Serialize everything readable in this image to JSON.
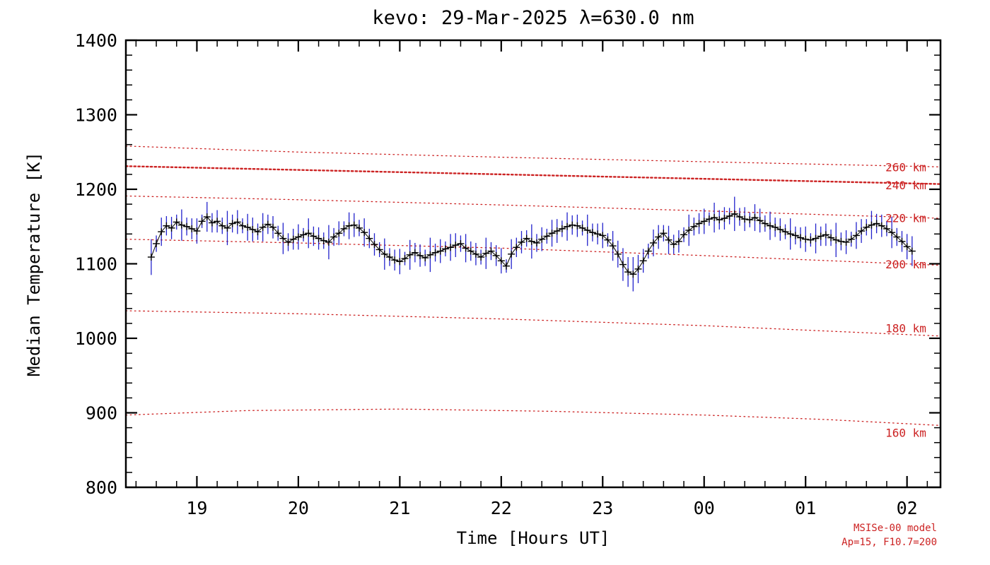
{
  "page": {
    "background": "#ffffff"
  },
  "chart_data": {
    "type": "scatter",
    "title": "kevo: 29-Mar-2025 λ=630.0 nm",
    "xlabel": "Time [Hours UT]",
    "ylabel": "Median Temperature [K]",
    "xlim": [
      18.3,
      26.33
    ],
    "ylim": [
      800,
      1400
    ],
    "grid": false,
    "x_ticks": [
      {
        "value": 19,
        "label": "19"
      },
      {
        "value": 20,
        "label": "20"
      },
      {
        "value": 21,
        "label": "21"
      },
      {
        "value": 22,
        "label": "22"
      },
      {
        "value": 23,
        "label": "23"
      },
      {
        "value": 24,
        "label": "00"
      },
      {
        "value": 25,
        "label": "01"
      },
      {
        "value": 26,
        "label": "02"
      }
    ],
    "y_ticks": [
      {
        "value": 800,
        "label": "800"
      },
      {
        "value": 900,
        "label": "900"
      },
      {
        "value": 1000,
        "label": "1000"
      },
      {
        "value": 1100,
        "label": "1100"
      },
      {
        "value": 1200,
        "label": "1200"
      },
      {
        "value": 1300,
        "label": "1300"
      },
      {
        "value": 1400,
        "label": "1400"
      }
    ],
    "x_minor_step": 0.2,
    "y_minor_step": 20,
    "colors": {
      "axis": "#000000",
      "model": "#cc2222",
      "data_errorbar": "#2222cc",
      "data_marker": "#000000"
    },
    "series": {
      "name": "median temperature",
      "marker": "plus",
      "marker_color": "#000000",
      "errorbar_color": "#2222cc",
      "x_start": 18.55,
      "x_step": 0.05,
      "values": [
        1109,
        1127,
        1143,
        1151,
        1148,
        1156,
        1152,
        1150,
        1147,
        1144,
        1157,
        1163,
        1155,
        1157,
        1151,
        1148,
        1154,
        1156,
        1151,
        1149,
        1146,
        1143,
        1149,
        1153,
        1149,
        1141,
        1134,
        1129,
        1133,
        1136,
        1139,
        1141,
        1137,
        1134,
        1131,
        1129,
        1136,
        1141,
        1147,
        1151,
        1152,
        1148,
        1142,
        1134,
        1126,
        1119,
        1113,
        1109,
        1105,
        1103,
        1107,
        1112,
        1115,
        1111,
        1108,
        1112,
        1115,
        1117,
        1120,
        1122,
        1125,
        1127,
        1121,
        1117,
        1113,
        1109,
        1114,
        1117,
        1111,
        1104,
        1097,
        1113,
        1122,
        1129,
        1134,
        1130,
        1128,
        1133,
        1137,
        1141,
        1144,
        1147,
        1150,
        1152,
        1151,
        1148,
        1145,
        1142,
        1140,
        1138,
        1132,
        1124,
        1113,
        1099,
        1089,
        1086,
        1093,
        1104,
        1117,
        1128,
        1136,
        1141,
        1132,
        1126,
        1130,
        1139,
        1145,
        1150,
        1154,
        1157,
        1160,
        1162,
        1159,
        1161,
        1164,
        1167,
        1163,
        1160,
        1159,
        1162,
        1158,
        1154,
        1151,
        1149,
        1146,
        1143,
        1140,
        1138,
        1135,
        1133,
        1132,
        1134,
        1137,
        1139,
        1135,
        1132,
        1130,
        1129,
        1133,
        1138,
        1144,
        1149,
        1152,
        1154,
        1151,
        1147,
        1142,
        1136,
        1130,
        1123,
        1117
      ],
      "errors": [
        24,
        11,
        19,
        13,
        15,
        10,
        21,
        12,
        14,
        17,
        9,
        20,
        13,
        15,
        11,
        23,
        12,
        16,
        10,
        18,
        16,
        11,
        19,
        13,
        15,
        10,
        21,
        12,
        14,
        17,
        9,
        20,
        13,
        15,
        11,
        23,
        12,
        16,
        10,
        18,
        16,
        11,
        19,
        13,
        15,
        10,
        21,
        12,
        14,
        17,
        9,
        20,
        13,
        15,
        11,
        23,
        12,
        16,
        10,
        18,
        16,
        11,
        19,
        13,
        15,
        10,
        21,
        12,
        14,
        17,
        9,
        20,
        13,
        15,
        11,
        23,
        12,
        16,
        10,
        18,
        16,
        11,
        19,
        13,
        15,
        10,
        21,
        12,
        14,
        17,
        9,
        20,
        18,
        22,
        20,
        23,
        19,
        16,
        10,
        18,
        16,
        11,
        19,
        13,
        15,
        10,
        21,
        12,
        14,
        17,
        9,
        20,
        13,
        15,
        11,
        23,
        12,
        16,
        10,
        18,
        16,
        11,
        19,
        13,
        15,
        10,
        21,
        12,
        14,
        17,
        9,
        20,
        13,
        15,
        11,
        23,
        12,
        16,
        10,
        18,
        16,
        11,
        19,
        13,
        15,
        10,
        21,
        12,
        14,
        17,
        20
      ]
    },
    "model_curves": [
      {
        "label": "260 km",
        "thick": false,
        "label_x": 26.19,
        "label_y": 1224,
        "points": [
          [
            18.3,
            1258
          ],
          [
            20,
            1250
          ],
          [
            22,
            1243
          ],
          [
            24,
            1237
          ],
          [
            26.33,
            1230
          ]
        ]
      },
      {
        "label": "240 km",
        "thick": true,
        "label_x": 26.19,
        "label_y": 1200,
        "points": [
          [
            18.3,
            1231
          ],
          [
            20,
            1226
          ],
          [
            22,
            1220
          ],
          [
            24,
            1214
          ],
          [
            26.33,
            1207
          ]
        ]
      },
      {
        "label": "220 km",
        "thick": false,
        "label_x": 26.19,
        "label_y": 1156,
        "points": [
          [
            18.3,
            1191
          ],
          [
            20,
            1186
          ],
          [
            22,
            1179
          ],
          [
            24,
            1171
          ],
          [
            26.33,
            1161
          ]
        ]
      },
      {
        "label": "200 km",
        "thick": false,
        "label_x": 26.19,
        "label_y": 1094,
        "points": [
          [
            18.3,
            1133
          ],
          [
            20,
            1128
          ],
          [
            22,
            1121
          ],
          [
            24,
            1111
          ],
          [
            26.33,
            1098
          ]
        ]
      },
      {
        "label": "180 km",
        "thick": false,
        "label_x": 26.19,
        "label_y": 1008,
        "points": [
          [
            18.3,
            1037
          ],
          [
            20,
            1033
          ],
          [
            22,
            1026
          ],
          [
            24,
            1017
          ],
          [
            26.33,
            1003
          ]
        ]
      },
      {
        "label": "160 km",
        "thick": false,
        "label_x": 26.19,
        "label_y": 868,
        "points": [
          [
            18.3,
            897
          ],
          [
            19.5,
            903
          ],
          [
            21,
            905
          ],
          [
            22.5,
            902
          ],
          [
            24,
            897
          ],
          [
            25.2,
            891
          ],
          [
            26.33,
            883
          ]
        ]
      }
    ],
    "annotations": [
      {
        "text": "MSISe-00 model"
      },
      {
        "text": "Ap=15, F10.7=200"
      }
    ]
  }
}
